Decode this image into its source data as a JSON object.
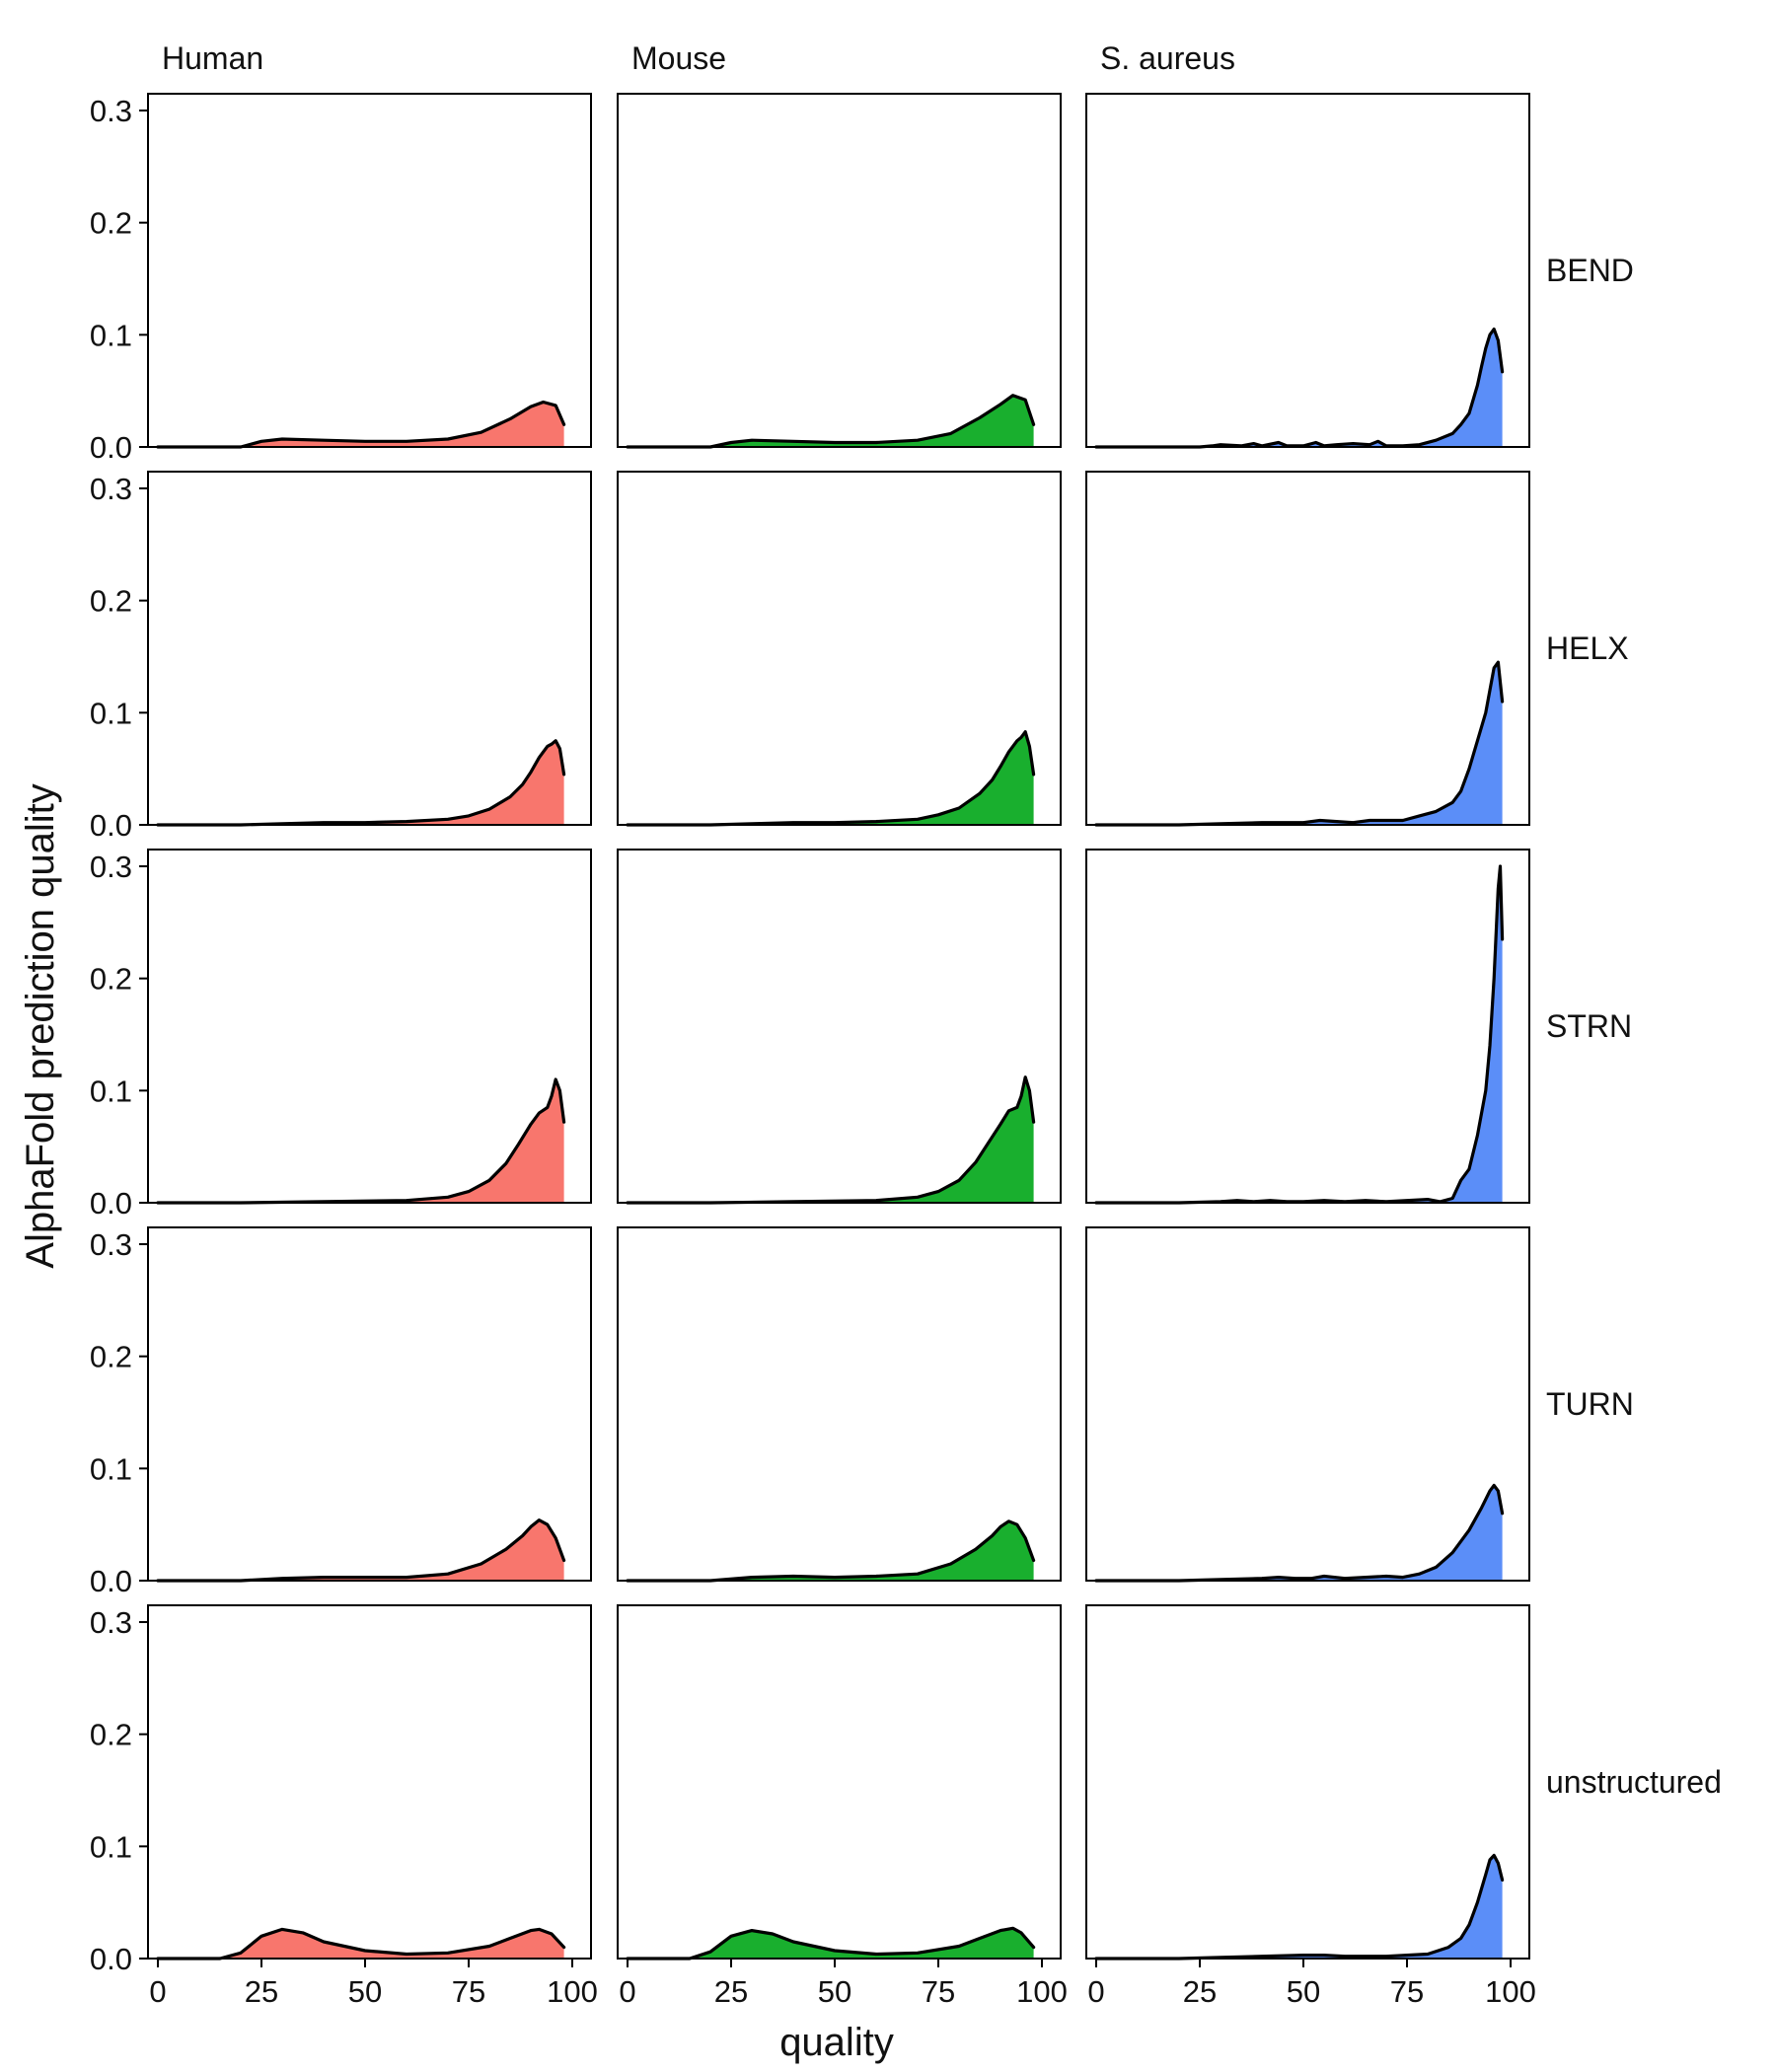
{
  "chart_data": {
    "type": "area",
    "title": "",
    "xlabel": "quality",
    "ylabel": "AlphaFold prediction quality",
    "xlim": [
      0,
      100
    ],
    "ylim": [
      0,
      0.3
    ],
    "x_ticks": [
      0,
      25,
      50,
      75,
      100
    ],
    "y_ticks": [
      0.0,
      0.1,
      0.2,
      0.3
    ],
    "x_tick_labels": [
      "0",
      "25",
      "50",
      "75",
      "100"
    ],
    "y_tick_labels": [
      "0.0",
      "0.1",
      "0.2",
      "0.3"
    ],
    "grid": false,
    "legend": "none",
    "columns": [
      "Human",
      "Mouse",
      "S. aureus"
    ],
    "rows": [
      "BEND",
      "HELX",
      "STRN",
      "TURN",
      "unstructured"
    ],
    "column_colors": [
      "#F8766D",
      "#19AF2E",
      "#5B8EF8"
    ],
    "outline_color": "#000000",
    "panels": [
      [
        {
          "x": [
            0,
            20,
            25,
            30,
            40,
            50,
            60,
            70,
            78,
            85,
            90,
            93,
            96,
            98
          ],
          "y": [
            0,
            0,
            0.005,
            0.007,
            0.006,
            0.005,
            0.005,
            0.007,
            0.013,
            0.025,
            0.036,
            0.04,
            0.037,
            0.02
          ]
        },
        {
          "x": [
            0,
            20,
            25,
            30,
            40,
            50,
            60,
            70,
            78,
            85,
            90,
            93,
            96,
            98
          ],
          "y": [
            0,
            0,
            0.004,
            0.006,
            0.005,
            0.004,
            0.004,
            0.006,
            0.012,
            0.026,
            0.038,
            0.046,
            0.042,
            0.02
          ]
        },
        {
          "x": [
            0,
            20,
            25,
            28,
            30,
            35,
            38,
            40,
            44,
            46,
            50,
            53,
            55,
            58,
            62,
            66,
            68,
            70,
            74,
            78,
            82,
            86,
            88,
            90,
            92,
            93,
            94,
            95,
            96,
            97,
            98
          ],
          "y": [
            0,
            0,
            0,
            0.001,
            0.002,
            0.001,
            0.003,
            0.001,
            0.004,
            0.001,
            0.001,
            0.004,
            0.001,
            0.002,
            0.003,
            0.002,
            0.005,
            0.001,
            0.001,
            0.002,
            0.006,
            0.012,
            0.02,
            0.03,
            0.055,
            0.072,
            0.088,
            0.1,
            0.105,
            0.095,
            0.067
          ]
        }
      ],
      [
        {
          "x": [
            0,
            20,
            30,
            40,
            50,
            60,
            70,
            75,
            80,
            85,
            88,
            90,
            92,
            94,
            95,
            96,
            97,
            98
          ],
          "y": [
            0,
            0,
            0.001,
            0.002,
            0.002,
            0.003,
            0.005,
            0.008,
            0.014,
            0.025,
            0.036,
            0.047,
            0.06,
            0.07,
            0.072,
            0.075,
            0.068,
            0.045
          ]
        },
        {
          "x": [
            0,
            20,
            30,
            40,
            50,
            60,
            70,
            75,
            80,
            85,
            88,
            90,
            92,
            94,
            95,
            96,
            97,
            98
          ],
          "y": [
            0,
            0,
            0.001,
            0.002,
            0.002,
            0.003,
            0.005,
            0.009,
            0.015,
            0.028,
            0.04,
            0.052,
            0.065,
            0.075,
            0.078,
            0.083,
            0.07,
            0.045
          ]
        },
        {
          "x": [
            0,
            20,
            30,
            40,
            50,
            54,
            58,
            62,
            66,
            70,
            74,
            78,
            82,
            86,
            88,
            90,
            92,
            94,
            95,
            96,
            97,
            98
          ],
          "y": [
            0,
            0,
            0.001,
            0.002,
            0.002,
            0.004,
            0.003,
            0.002,
            0.004,
            0.004,
            0.004,
            0.008,
            0.012,
            0.02,
            0.03,
            0.05,
            0.075,
            0.1,
            0.12,
            0.14,
            0.145,
            0.11
          ]
        }
      ],
      [
        {
          "x": [
            0,
            20,
            40,
            60,
            70,
            75,
            80,
            84,
            87,
            90,
            92,
            94,
            95,
            96,
            97,
            98
          ],
          "y": [
            0,
            0,
            0.001,
            0.002,
            0.005,
            0.01,
            0.02,
            0.035,
            0.052,
            0.07,
            0.08,
            0.085,
            0.095,
            0.11,
            0.1,
            0.072
          ]
        },
        {
          "x": [
            0,
            20,
            40,
            60,
            70,
            75,
            80,
            84,
            87,
            90,
            92,
            94,
            95,
            96,
            97,
            98
          ],
          "y": [
            0,
            0,
            0.001,
            0.002,
            0.005,
            0.01,
            0.02,
            0.036,
            0.053,
            0.07,
            0.082,
            0.085,
            0.095,
            0.112,
            0.1,
            0.072
          ]
        },
        {
          "x": [
            0,
            20,
            30,
            34,
            38,
            42,
            46,
            50,
            55,
            60,
            65,
            70,
            75,
            80,
            83,
            86,
            88,
            90,
            92,
            94,
            95,
            96,
            97,
            97.5,
            98
          ],
          "y": [
            0,
            0,
            0.001,
            0.002,
            0.001,
            0.002,
            0.001,
            0.001,
            0.002,
            0.001,
            0.002,
            0.001,
            0.002,
            0.003,
            0.001,
            0.004,
            0.02,
            0.03,
            0.06,
            0.1,
            0.14,
            0.2,
            0.28,
            0.3,
            0.235
          ]
        }
      ],
      [
        {
          "x": [
            0,
            20,
            30,
            40,
            50,
            60,
            70,
            78,
            84,
            88,
            90,
            92,
            94,
            96,
            98
          ],
          "y": [
            0,
            0,
            0.002,
            0.003,
            0.003,
            0.003,
            0.006,
            0.015,
            0.028,
            0.04,
            0.048,
            0.054,
            0.05,
            0.038,
            0.018
          ]
        },
        {
          "x": [
            0,
            20,
            30,
            40,
            50,
            60,
            70,
            78,
            84,
            88,
            90,
            92,
            94,
            96,
            98
          ],
          "y": [
            0,
            0,
            0.003,
            0.004,
            0.003,
            0.004,
            0.006,
            0.015,
            0.028,
            0.04,
            0.048,
            0.053,
            0.05,
            0.038,
            0.018
          ]
        },
        {
          "x": [
            0,
            20,
            30,
            40,
            44,
            48,
            52,
            55,
            60,
            65,
            70,
            74,
            78,
            82,
            86,
            90,
            93,
            95,
            96,
            97,
            98
          ],
          "y": [
            0,
            0,
            0.001,
            0.002,
            0.003,
            0.002,
            0.002,
            0.004,
            0.002,
            0.003,
            0.004,
            0.003,
            0.006,
            0.012,
            0.025,
            0.045,
            0.065,
            0.08,
            0.085,
            0.08,
            0.06
          ]
        }
      ],
      [
        {
          "x": [
            0,
            15,
            20,
            25,
            30,
            35,
            40,
            50,
            60,
            70,
            80,
            85,
            90,
            92,
            95,
            98
          ],
          "y": [
            0,
            0,
            0.005,
            0.02,
            0.026,
            0.023,
            0.015,
            0.007,
            0.004,
            0.005,
            0.011,
            0.018,
            0.025,
            0.026,
            0.022,
            0.01
          ]
        },
        {
          "x": [
            0,
            15,
            20,
            25,
            30,
            35,
            40,
            50,
            60,
            70,
            80,
            85,
            90,
            93,
            95,
            98
          ],
          "y": [
            0,
            0,
            0.006,
            0.02,
            0.025,
            0.022,
            0.015,
            0.007,
            0.004,
            0.005,
            0.011,
            0.018,
            0.025,
            0.027,
            0.023,
            0.01
          ]
        },
        {
          "x": [
            0,
            20,
            30,
            40,
            50,
            55,
            60,
            70,
            80,
            85,
            88,
            90,
            92,
            94,
            95,
            96,
            97,
            98
          ],
          "y": [
            0,
            0,
            0.001,
            0.002,
            0.003,
            0.003,
            0.002,
            0.002,
            0.004,
            0.01,
            0.018,
            0.03,
            0.05,
            0.075,
            0.088,
            0.092,
            0.085,
            0.07
          ]
        }
      ]
    ]
  }
}
